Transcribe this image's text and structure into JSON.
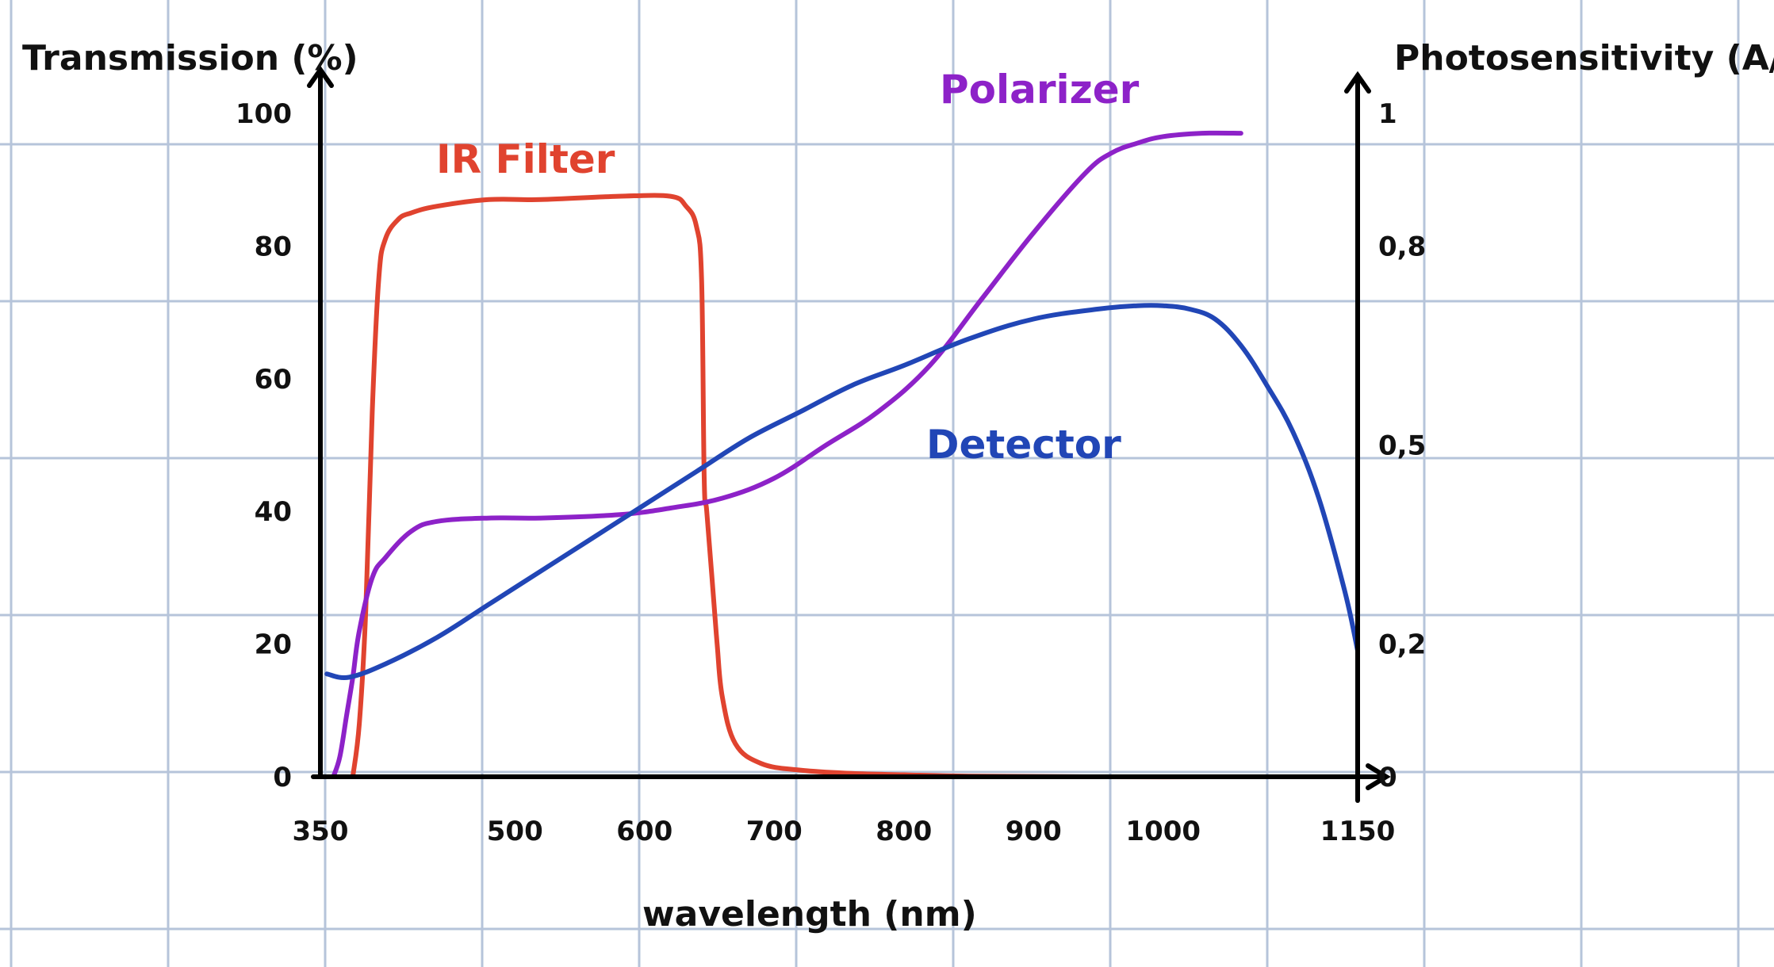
{
  "chart_data": {
    "type": "line",
    "xlabel": "wavelength (nm)",
    "ylabel": "Transmission (%)",
    "y2label": "Photosensitivity (A/w)",
    "xlim": [
      350,
      1150
    ],
    "ylim": [
      0,
      100
    ],
    "y2lim": [
      0,
      1
    ],
    "x_ticks": [
      {
        "v": 350,
        "label": "350"
      },
      {
        "v": 500,
        "label": "500"
      },
      {
        "v": 600,
        "label": "600"
      },
      {
        "v": 700,
        "label": "700"
      },
      {
        "v": 800,
        "label": "800"
      },
      {
        "v": 900,
        "label": "900"
      },
      {
        "v": 1000,
        "label": "1000"
      },
      {
        "v": 1150,
        "label": "1150"
      }
    ],
    "y_ticks": [
      {
        "v": 0,
        "label": "0"
      },
      {
        "v": 20,
        "label": "20"
      },
      {
        "v": 40,
        "label": "40"
      },
      {
        "v": 60,
        "label": "60"
      },
      {
        "v": 80,
        "label": "80"
      },
      {
        "v": 100,
        "label": "100"
      }
    ],
    "y2_ticks": [
      {
        "v": 0,
        "label": "0"
      },
      {
        "v": 0.2,
        "label": "0,2"
      },
      {
        "v": 0.5,
        "label": "0,5"
      },
      {
        "v": 0.8,
        "label": "0,8"
      },
      {
        "v": 1,
        "label": "1"
      }
    ],
    "grid": true,
    "series": [
      {
        "name": "IR Filter",
        "color": "#e0432f",
        "axis": "left",
        "x": [
          375,
          380,
          385,
          390,
          395,
          400,
          410,
          420,
          440,
          480,
          520,
          580,
          620,
          632,
          640,
          644,
          646,
          648,
          652,
          656,
          660,
          670,
          690,
          720,
          760,
          800,
          850,
          950,
          1050,
          1150
        ],
        "y": [
          0,
          8,
          25,
          55,
          75,
          81,
          84,
          85,
          86,
          87,
          87,
          87.5,
          87.5,
          86,
          83,
          75,
          45,
          40,
          30,
          20,
          12,
          5,
          2,
          1,
          0.5,
          0.3,
          0.1,
          0,
          0,
          0
        ]
      },
      {
        "name": "Polarizer",
        "color": "#8d22c8",
        "axis": "left",
        "x": [
          360,
          365,
          370,
          375,
          380,
          390,
          400,
          420,
          440,
          480,
          520,
          580,
          620,
          660,
          700,
          740,
          780,
          820,
          860,
          900,
          940,
          960,
          980,
          1000,
          1030,
          1060
        ],
        "y": [
          0,
          3,
          9,
          15,
          22,
          30,
          33,
          37,
          38.5,
          39,
          39,
          39.5,
          40.5,
          42,
          45,
          50,
          55,
          62,
          72,
          82,
          91,
          94,
          95.5,
          96.5,
          97,
          97
        ]
      },
      {
        "name": "Detector",
        "color": "#2146b6",
        "axis": "right",
        "x": [
          355,
          372,
          400,
          440,
          480,
          520,
          560,
          600,
          640,
          680,
          720,
          760,
          800,
          850,
          900,
          950,
          980,
          1000,
          1020,
          1040,
          1060,
          1080,
          1100,
          1120,
          1140,
          1150
        ],
        "y": [
          0.155,
          0.15,
          0.17,
          0.21,
          0.26,
          0.31,
          0.36,
          0.41,
          0.46,
          0.51,
          0.55,
          0.59,
          0.62,
          0.66,
          0.69,
          0.705,
          0.71,
          0.71,
          0.705,
          0.69,
          0.65,
          0.59,
          0.52,
          0.42,
          0.28,
          0.19
        ]
      }
    ]
  }
}
